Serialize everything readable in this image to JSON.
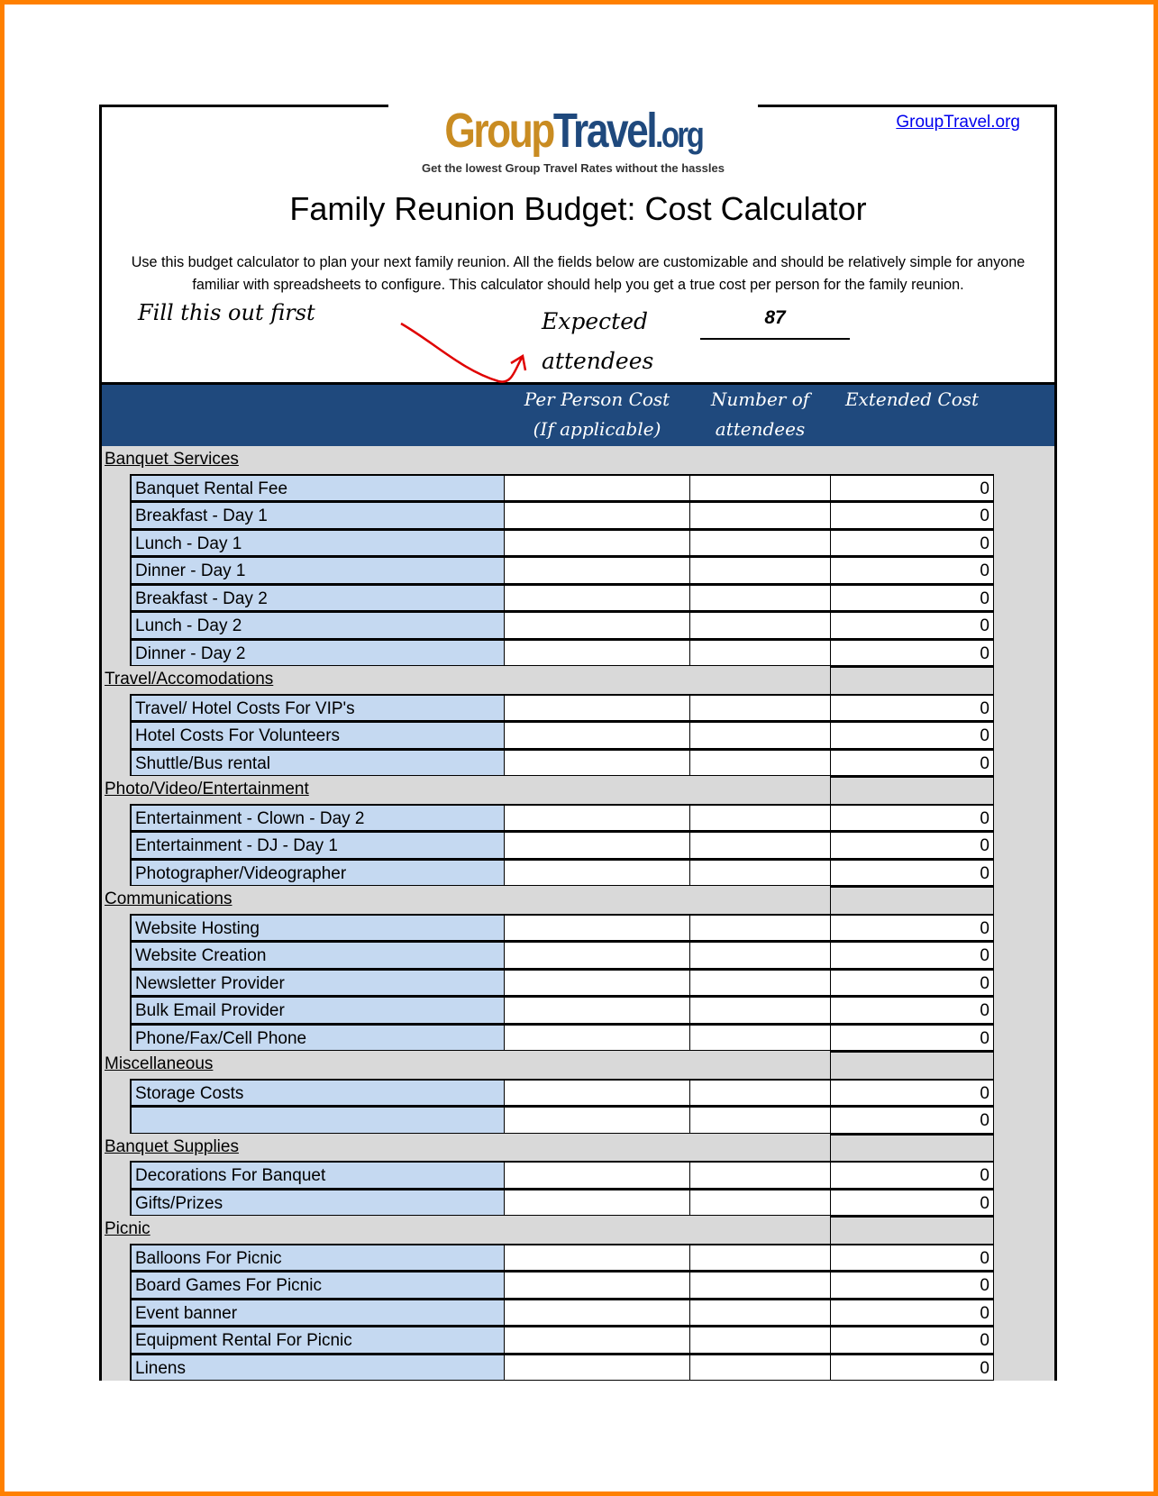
{
  "header": {
    "logo_text": "GroupTravel.org",
    "logo_part1": "Group",
    "logo_part2": "Travel",
    "logo_part3": ".org",
    "tagline": "Get the lowest Group Travel Rates without the hassles",
    "site_link": "GroupTravel.org",
    "title": "Family Reunion Budget: Cost Calculator",
    "description": "Use this budget calculator to plan your next family reunion. All the fields below are customizable and should be relatively simple for anyone familiar with spreadsheets to configure. This calculator should help you get a true cost per person for the family reunion.",
    "fill_note": "Fill this out first",
    "expected_label_1": "Expected",
    "expected_label_2": "attendees",
    "expected_value": "87",
    "arrow_color": "#e00000"
  },
  "columns": {
    "per_person_1": "Per Person Cost",
    "per_person_2": "(If applicable)",
    "number_1": "Number of",
    "number_2": "attendees",
    "extended": "Extended Cost"
  },
  "colors": {
    "header_bg": "#1f497d",
    "label_bg": "#c5d9f1",
    "body_bg": "#d9d9d9",
    "frame": "#ff8000"
  },
  "sections": [
    {
      "name": "Banquet Services",
      "items": [
        {
          "label": "Banquet Rental Fee",
          "extended": "0"
        },
        {
          "label": "Breakfast - Day 1",
          "extended": "0"
        },
        {
          "label": "Lunch - Day 1",
          "extended": "0"
        },
        {
          "label": "Dinner - Day 1",
          "extended": "0"
        },
        {
          "label": "Breakfast - Day 2",
          "extended": "0"
        },
        {
          "label": "Lunch - Day 2",
          "extended": "0"
        },
        {
          "label": "Dinner - Day 2",
          "extended": "0"
        }
      ]
    },
    {
      "name": "Travel/Accomodations",
      "items": [
        {
          "label": "Travel/ Hotel Costs For VIP's",
          "extended": "0"
        },
        {
          "label": "Hotel Costs For Volunteers",
          "extended": "0"
        },
        {
          "label": "Shuttle/Bus rental",
          "extended": "0"
        }
      ]
    },
    {
      "name": "Photo/Video/Entertainment",
      "items": [
        {
          "label": "Entertainment - Clown - Day 2",
          "extended": "0"
        },
        {
          "label": "Entertainment - DJ - Day 1",
          "extended": "0"
        },
        {
          "label": "Photographer/Videographer",
          "extended": "0"
        }
      ]
    },
    {
      "name": "Communications",
      "items": [
        {
          "label": "Website Hosting",
          "extended": "0"
        },
        {
          "label": "Website Creation",
          "extended": "0"
        },
        {
          "label": "Newsletter Provider",
          "extended": "0"
        },
        {
          "label": "Bulk Email Provider",
          "extended": "0"
        },
        {
          "label": "Phone/Fax/Cell Phone",
          "extended": "0"
        }
      ]
    },
    {
      "name": "Miscellaneous",
      "items": [
        {
          "label": "Storage Costs",
          "extended": "0"
        },
        {
          "label": "",
          "extended": "0"
        }
      ]
    },
    {
      "name": "Banquet Supplies",
      "items": [
        {
          "label": "Decorations For Banquet",
          "extended": "0"
        },
        {
          "label": "Gifts/Prizes",
          "extended": "0"
        }
      ]
    },
    {
      "name": "Picnic",
      "items": [
        {
          "label": "Balloons For Picnic",
          "extended": "0"
        },
        {
          "label": "Board Games For Picnic",
          "extended": "0"
        },
        {
          "label": "Event banner",
          "extended": "0"
        },
        {
          "label": "Equipment Rental For Picnic",
          "extended": "0"
        },
        {
          "label": "Linens",
          "extended": "0"
        }
      ]
    }
  ]
}
